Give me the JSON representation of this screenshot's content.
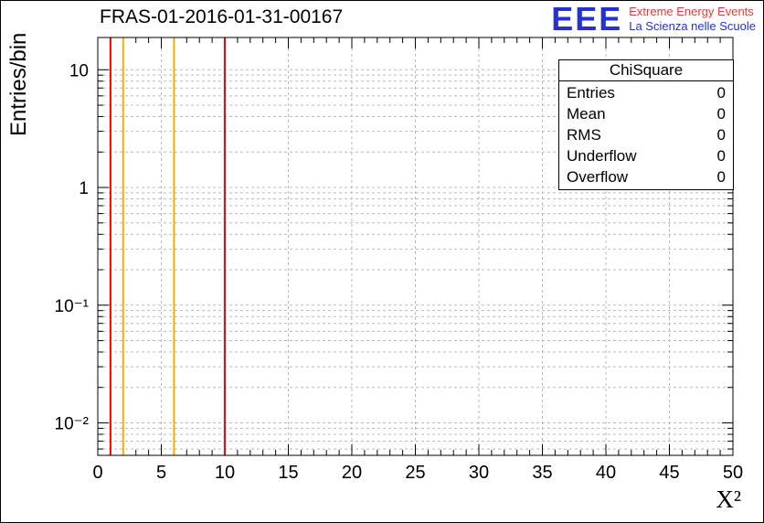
{
  "title": "FRAS-01-2016-01-31-00167",
  "logo": {
    "text": "EEE",
    "line1": "Extreme Energy Events",
    "line2": "La Scienza nelle Scuole",
    "blue": "#2531d4",
    "red": "#e53935"
  },
  "stats": {
    "title": "ChiSquare",
    "rows": [
      {
        "label": "Entries",
        "value": "0"
      },
      {
        "label": "Mean",
        "value": "0"
      },
      {
        "label": "RMS",
        "value": "0"
      },
      {
        "label": "Underflow",
        "value": "0"
      },
      {
        "label": "Overflow",
        "value": "0"
      }
    ]
  },
  "chart_data": {
    "type": "histogram",
    "title": "FRAS-01-2016-01-31-00167",
    "xlabel": "X²",
    "ylabel": "Entries/bin",
    "xlim": [
      0,
      50
    ],
    "ylim": [
      0.0053,
      18.8
    ],
    "yscale": "log",
    "grid": true,
    "grid_color": "#b9b9b9",
    "frame_color": "#000000",
    "x_major_ticks": [
      0,
      5,
      10,
      15,
      20,
      25,
      30,
      35,
      40,
      45,
      50
    ],
    "x_minor_step": 1,
    "y_major_ticks": [
      {
        "value": 10,
        "label": "10"
      },
      {
        "value": 1,
        "label": "1"
      },
      {
        "value": 0.1,
        "label": "10⁻¹"
      },
      {
        "value": 0.01,
        "label": "10⁻²"
      }
    ],
    "entries": 0,
    "series": [],
    "vlines": [
      {
        "x": 1,
        "color": "#ff0000"
      },
      {
        "x": 2,
        "color": "#ffaa00"
      },
      {
        "x": 6,
        "color": "#ffaa00"
      },
      {
        "x": 10,
        "color": "#ff0000"
      }
    ]
  }
}
